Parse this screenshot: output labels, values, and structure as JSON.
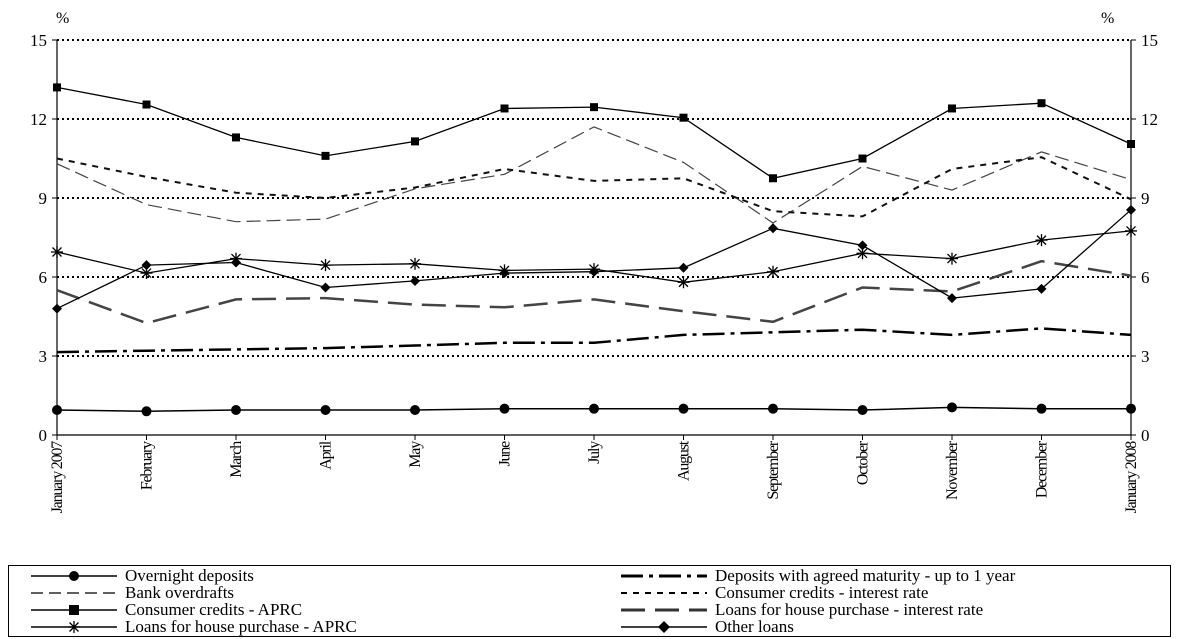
{
  "chart_data": {
    "type": "line",
    "title": "",
    "unit_left": "%",
    "unit_right": "%",
    "xlabel": "",
    "ylabel": "",
    "ylim": [
      0,
      15
    ],
    "yticks": [
      0,
      3,
      6,
      9,
      12,
      15
    ],
    "grid": "dotted horizontal at 3, 6, 9, 12, 15",
    "legend_position": "bottom",
    "categories": [
      "January 2007",
      "February",
      "March",
      "April",
      "May",
      "June",
      "July",
      "August",
      "September",
      "October",
      "November",
      "December",
      "January 2008"
    ],
    "series": [
      {
        "name": "Overnight deposits",
        "style": "solid-circle",
        "values": [
          0.95,
          0.9,
          0.95,
          0.95,
          0.95,
          1.0,
          1.0,
          1.0,
          1.0,
          0.95,
          1.05,
          1.0,
          1.0
        ]
      },
      {
        "name": "Deposits with agreed maturity - up to 1 year",
        "style": "dashdot",
        "values": [
          3.15,
          3.2,
          3.25,
          3.3,
          3.4,
          3.5,
          3.5,
          3.8,
          3.9,
          4.0,
          3.8,
          4.05,
          3.8
        ]
      },
      {
        "name": "Bank overdrafts",
        "style": "dash-thin",
        "values": [
          10.3,
          8.75,
          8.1,
          8.2,
          9.35,
          9.9,
          11.7,
          10.35,
          8.05,
          10.2,
          9.3,
          10.75,
          9.7
        ]
      },
      {
        "name": "Consumer credits - interest rate",
        "style": "short-dash",
        "values": [
          10.5,
          9.8,
          9.2,
          9.0,
          9.4,
          10.1,
          9.65,
          9.75,
          8.5,
          8.3,
          10.1,
          10.55,
          8.95
        ]
      },
      {
        "name": "Consumer credits - APRC",
        "style": "solid-square",
        "values": [
          13.2,
          12.55,
          11.3,
          10.6,
          11.15,
          12.4,
          12.45,
          12.05,
          9.75,
          10.5,
          12.4,
          12.6,
          11.05
        ]
      },
      {
        "name": "Loans for house purchase - interest rate",
        "style": "long-dash",
        "values": [
          5.5,
          4.25,
          5.15,
          5.2,
          4.95,
          4.85,
          5.15,
          4.7,
          4.3,
          5.6,
          5.45,
          6.6,
          6.05
        ]
      },
      {
        "name": "Loans for house purchase - APRC",
        "style": "solid-star",
        "values": [
          6.95,
          6.15,
          6.7,
          6.45,
          6.5,
          6.25,
          6.3,
          5.8,
          6.2,
          6.9,
          6.7,
          7.4,
          7.75
        ]
      },
      {
        "name": "Other loans",
        "style": "solid-diamond",
        "values": [
          4.8,
          6.45,
          6.55,
          5.6,
          5.85,
          6.15,
          6.2,
          6.35,
          7.85,
          7.2,
          5.2,
          5.55,
          8.55
        ]
      }
    ]
  }
}
